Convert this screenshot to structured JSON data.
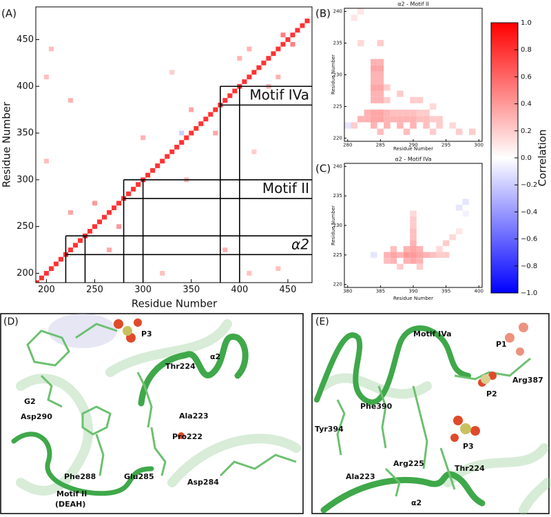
{
  "chart_data": [
    {
      "type": "heatmap",
      "panel_label": "(A)",
      "xlabel": "Residue Number",
      "ylabel": "Residue Number",
      "xlim": [
        189,
        475
      ],
      "ylim": [
        190,
        485
      ],
      "xticks": [
        200,
        250,
        300,
        350,
        400,
        450
      ],
      "yticks": [
        200,
        250,
        300,
        350,
        400,
        450
      ],
      "regions": [
        {
          "range": [
            220,
            240
          ],
          "label": "α2"
        },
        {
          "range": [
            280,
            300
          ],
          "label": "Motif II"
        },
        {
          "range": [
            380,
            400
          ],
          "label": "Motif IVa"
        }
      ],
      "cells": [
        [
          190,
          190,
          0.8
        ],
        [
          195,
          195,
          0.8
        ],
        [
          200,
          200,
          0.8
        ],
        [
          205,
          205,
          0.8
        ],
        [
          210,
          210,
          0.8
        ],
        [
          215,
          215,
          0.8
        ],
        [
          220,
          220,
          0.8
        ],
        [
          225,
          225,
          0.8
        ],
        [
          230,
          230,
          0.8
        ],
        [
          235,
          235,
          0.8
        ],
        [
          240,
          240,
          0.8
        ],
        [
          245,
          245,
          0.8
        ],
        [
          250,
          250,
          0.8
        ],
        [
          255,
          255,
          0.8
        ],
        [
          260,
          260,
          0.8
        ],
        [
          265,
          265,
          0.8
        ],
        [
          270,
          270,
          0.8
        ],
        [
          275,
          275,
          0.8
        ],
        [
          280,
          280,
          0.8
        ],
        [
          285,
          285,
          0.8
        ],
        [
          290,
          290,
          0.8
        ],
        [
          295,
          295,
          0.8
        ],
        [
          300,
          300,
          0.8
        ],
        [
          305,
          305,
          0.8
        ],
        [
          310,
          310,
          0.8
        ],
        [
          315,
          315,
          0.8
        ],
        [
          320,
          320,
          0.8
        ],
        [
          325,
          325,
          0.8
        ],
        [
          330,
          330,
          0.8
        ],
        [
          335,
          335,
          0.8
        ],
        [
          340,
          340,
          0.8
        ],
        [
          345,
          345,
          0.8
        ],
        [
          350,
          350,
          0.8
        ],
        [
          355,
          355,
          0.8
        ],
        [
          360,
          360,
          0.8
        ],
        [
          365,
          365,
          0.8
        ],
        [
          370,
          370,
          0.8
        ],
        [
          375,
          375,
          0.8
        ],
        [
          380,
          380,
          0.8
        ],
        [
          385,
          385,
          0.8
        ],
        [
          390,
          390,
          0.8
        ],
        [
          395,
          395,
          0.8
        ],
        [
          400,
          400,
          0.8
        ],
        [
          405,
          405,
          0.8
        ],
        [
          410,
          410,
          0.8
        ],
        [
          415,
          415,
          0.8
        ],
        [
          420,
          420,
          0.8
        ],
        [
          425,
          425,
          0.8
        ],
        [
          430,
          430,
          0.8
        ],
        [
          435,
          435,
          0.8
        ],
        [
          440,
          440,
          0.8
        ],
        [
          445,
          445,
          0.8
        ],
        [
          450,
          450,
          0.8
        ],
        [
          455,
          455,
          0.8
        ],
        [
          460,
          460,
          0.8
        ],
        [
          465,
          465,
          0.8
        ],
        [
          470,
          470,
          0.8
        ],
        [
          445,
          455,
          0.5
        ],
        [
          455,
          445,
          0.5
        ],
        [
          430,
          400,
          0.3
        ],
        [
          400,
          430,
          0.3
        ],
        [
          410,
          440,
          0.3
        ],
        [
          440,
          410,
          0.3
        ],
        [
          350,
          375,
          0.35
        ],
        [
          375,
          350,
          0.35
        ],
        [
          300,
          345,
          0.3
        ],
        [
          345,
          300,
          0.3
        ],
        [
          250,
          275,
          0.4
        ],
        [
          275,
          250,
          0.4
        ],
        [
          225,
          265,
          0.35
        ],
        [
          265,
          225,
          0.35
        ],
        [
          385,
          225,
          0.3
        ],
        [
          225,
          385,
          0.3
        ],
        [
          320,
          200,
          0.25
        ],
        [
          200,
          320,
          0.25
        ],
        [
          205,
          440,
          0.25
        ],
        [
          440,
          205,
          0.25
        ],
        [
          200,
          410,
          0.25
        ],
        [
          410,
          200,
          0.25
        ],
        [
          330,
          415,
          0.2
        ],
        [
          415,
          330,
          0.2
        ],
        [
          340,
          350,
          -0.2
        ]
      ]
    },
    {
      "type": "heatmap",
      "panel_label": "(B)",
      "title": "α2 - Motif II",
      "xlabel": "Residue Number",
      "ylabel": "Residue Number",
      "xlim": [
        279.5,
        300.5
      ],
      "ylim": [
        219.5,
        240.5
      ],
      "xticks": [
        280,
        285,
        290,
        295,
        300
      ],
      "yticks": [
        220,
        225,
        230,
        235,
        240
      ],
      "cells": [
        [
          284,
          232,
          0.3
        ],
        [
          285,
          232,
          0.3
        ],
        [
          284,
          231,
          0.35
        ],
        [
          285,
          231,
          0.35
        ],
        [
          284,
          230,
          0.3
        ],
        [
          285,
          230,
          0.3
        ],
        [
          284,
          229,
          0.3
        ],
        [
          285,
          229,
          0.3
        ],
        [
          284,
          228,
          0.35
        ],
        [
          285,
          228,
          0.35
        ],
        [
          284,
          227,
          0.3
        ],
        [
          285,
          227,
          0.3
        ],
        [
          284,
          226,
          0.3
        ],
        [
          285,
          226,
          0.3
        ],
        [
          282,
          235,
          0.15
        ],
        [
          285,
          235,
          0.2
        ],
        [
          286,
          228,
          0.2
        ],
        [
          286,
          226,
          0.2
        ],
        [
          288,
          227,
          0.2
        ],
        [
          290,
          226,
          0.2
        ],
        [
          291,
          226,
          0.2
        ],
        [
          293,
          225,
          0.15
        ],
        [
          283,
          224,
          0.3
        ],
        [
          284,
          224,
          0.35
        ],
        [
          285,
          224,
          0.35
        ],
        [
          286,
          224,
          0.3
        ],
        [
          287,
          224,
          0.25
        ],
        [
          288,
          224,
          0.25
        ],
        [
          289,
          224,
          0.25
        ],
        [
          290,
          224,
          0.25
        ],
        [
          291,
          224,
          0.2
        ],
        [
          292,
          224,
          0.2
        ],
        [
          282,
          223,
          0.3
        ],
        [
          283,
          223,
          0.3
        ],
        [
          284,
          223,
          0.35
        ],
        [
          285,
          223,
          0.35
        ],
        [
          286,
          223,
          0.3
        ],
        [
          287,
          223,
          0.3
        ],
        [
          288,
          223,
          0.3
        ],
        [
          289,
          223,
          0.3
        ],
        [
          290,
          223,
          0.3
        ],
        [
          291,
          223,
          0.25
        ],
        [
          292,
          223,
          0.25
        ],
        [
          293,
          223,
          0.2
        ],
        [
          294,
          223,
          0.2
        ],
        [
          281,
          222,
          0.2
        ],
        [
          284,
          222,
          0.3
        ],
        [
          286,
          222,
          0.3
        ],
        [
          288,
          222,
          0.3
        ],
        [
          290,
          222,
          0.3
        ],
        [
          292,
          222,
          0.25
        ],
        [
          294,
          222,
          0.2
        ],
        [
          296,
          222,
          0.15
        ],
        [
          285,
          221,
          0.25
        ],
        [
          289,
          221,
          0.25
        ],
        [
          293,
          221,
          0.2
        ],
        [
          297,
          221,
          0.2
        ],
        [
          299,
          221,
          0.2
        ],
        [
          280,
          222,
          -0.1
        ],
        [
          281,
          239,
          0.1
        ],
        [
          282,
          240,
          0.1
        ]
      ]
    },
    {
      "type": "heatmap",
      "panel_label": "(C)",
      "title": "α2 - Motif IVa",
      "xlabel": "Residue Number",
      "ylabel": "Residue Number",
      "xlim": [
        379.5,
        400.5
      ],
      "ylim": [
        219.5,
        240.5
      ],
      "xticks": [
        380,
        385,
        390,
        395,
        400
      ],
      "yticks": [
        220,
        225,
        230,
        235,
        240
      ],
      "cells": [
        [
          386,
          225,
          0.3
        ],
        [
          387,
          225,
          0.35
        ],
        [
          388,
          225,
          0.3
        ],
        [
          389,
          225,
          0.4
        ],
        [
          390,
          225,
          0.4
        ],
        [
          391,
          225,
          0.35
        ],
        [
          392,
          225,
          0.3
        ],
        [
          393,
          225,
          0.25
        ],
        [
          394,
          225,
          0.2
        ],
        [
          395,
          225,
          0.2
        ],
        [
          386,
          224,
          0.25
        ],
        [
          387,
          224,
          0.3
        ],
        [
          389,
          224,
          0.3
        ],
        [
          390,
          224,
          0.35
        ],
        [
          391,
          224,
          0.3
        ],
        [
          387,
          226,
          0.25
        ],
        [
          389,
          226,
          0.3
        ],
        [
          390,
          226,
          0.35
        ],
        [
          391,
          226,
          0.3
        ],
        [
          390,
          227,
          0.3
        ],
        [
          390,
          228,
          0.25
        ],
        [
          390,
          229,
          0.25
        ],
        [
          390,
          230,
          0.2
        ],
        [
          390,
          231,
          0.2
        ],
        [
          390,
          232,
          0.15
        ],
        [
          394,
          226,
          0.15
        ],
        [
          395,
          227,
          0.2
        ],
        [
          396,
          228,
          0.15
        ],
        [
          397,
          229,
          0.1
        ],
        [
          388,
          223,
          0.2
        ],
        [
          391,
          223,
          0.2
        ],
        [
          384,
          225,
          -0.1
        ],
        [
          397,
          233,
          -0.1
        ],
        [
          398,
          234,
          -0.1
        ],
        [
          398,
          232,
          -0.05
        ]
      ]
    },
    {
      "type": "colorbar",
      "label": "Correlation",
      "lim": [
        -1,
        1
      ],
      "ticks": [
        {
          "value": -1,
          "label": "−1.0"
        },
        {
          "value": -0.8,
          "label": "−0.8"
        },
        {
          "value": -0.6,
          "label": "−0.6"
        },
        {
          "value": -0.4,
          "label": "−0.4"
        },
        {
          "value": -0.2,
          "label": "−0.2"
        },
        {
          "value": 0,
          "label": "0.0"
        },
        0.2,
        0.4,
        0.6,
        0.8,
        {
          "value": 1,
          "label": "1.0"
        }
      ]
    }
  ],
  "structure_panels": [
    {
      "label": "(D)",
      "annotations": [
        "P3",
        "G2",
        "Thr224",
        "α2",
        "Asp290",
        "Ala223",
        "Pro222",
        "Phe288",
        "Glu285",
        "Asp284",
        "Motif II",
        "(DEAH)"
      ]
    },
    {
      "label": "(E)",
      "annotations": [
        "Motif IVa",
        "P1",
        "P2",
        "Arg387",
        "Phe390",
        "Tyr394",
        "P3",
        "Arg225",
        "Thr224",
        "Ala223",
        "α2"
      ]
    }
  ]
}
